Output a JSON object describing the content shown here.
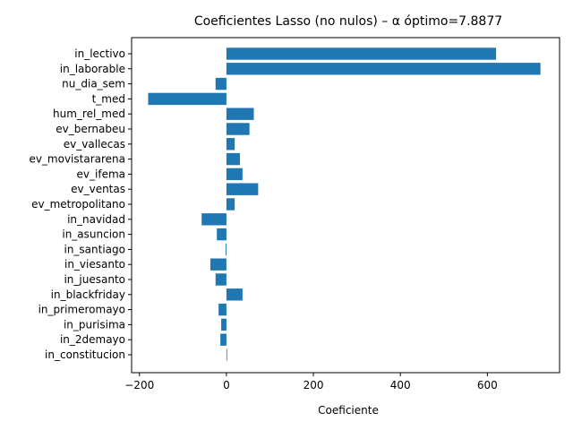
{
  "chart_data": {
    "type": "bar",
    "orientation": "horizontal",
    "title": "Coeficientes Lasso (no nulos) – α óptimo=7.8877",
    "xlabel": "Coeficiente",
    "ylabel": "",
    "xlim": [
      -218,
      766
    ],
    "xticks": [
      -200,
      0,
      200,
      400,
      600
    ],
    "bar_color": "#1f77b4",
    "grid": false,
    "categories": [
      "in_lectivo",
      "in_laborable",
      "nu_dia_sem",
      "t_med",
      "hum_rel_med",
      "ev_bernabeu",
      "ev_vallecas",
      "ev_movistararena",
      "ev_ifema",
      "ev_ventas",
      "ev_metropolitano",
      "in_navidad",
      "in_asuncion",
      "in_santiago",
      "in_viesanto",
      "in_juesanto",
      "in_blackfriday",
      "in_primeromayo",
      "in_purisima",
      "in_2demayo",
      "in_constitucion"
    ],
    "values": [
      620,
      722,
      -25,
      -180,
      63,
      53,
      19,
      31,
      37,
      73,
      19,
      -57,
      -22,
      -2,
      -37,
      -25,
      37,
      -18,
      -12,
      -14,
      1
    ]
  }
}
